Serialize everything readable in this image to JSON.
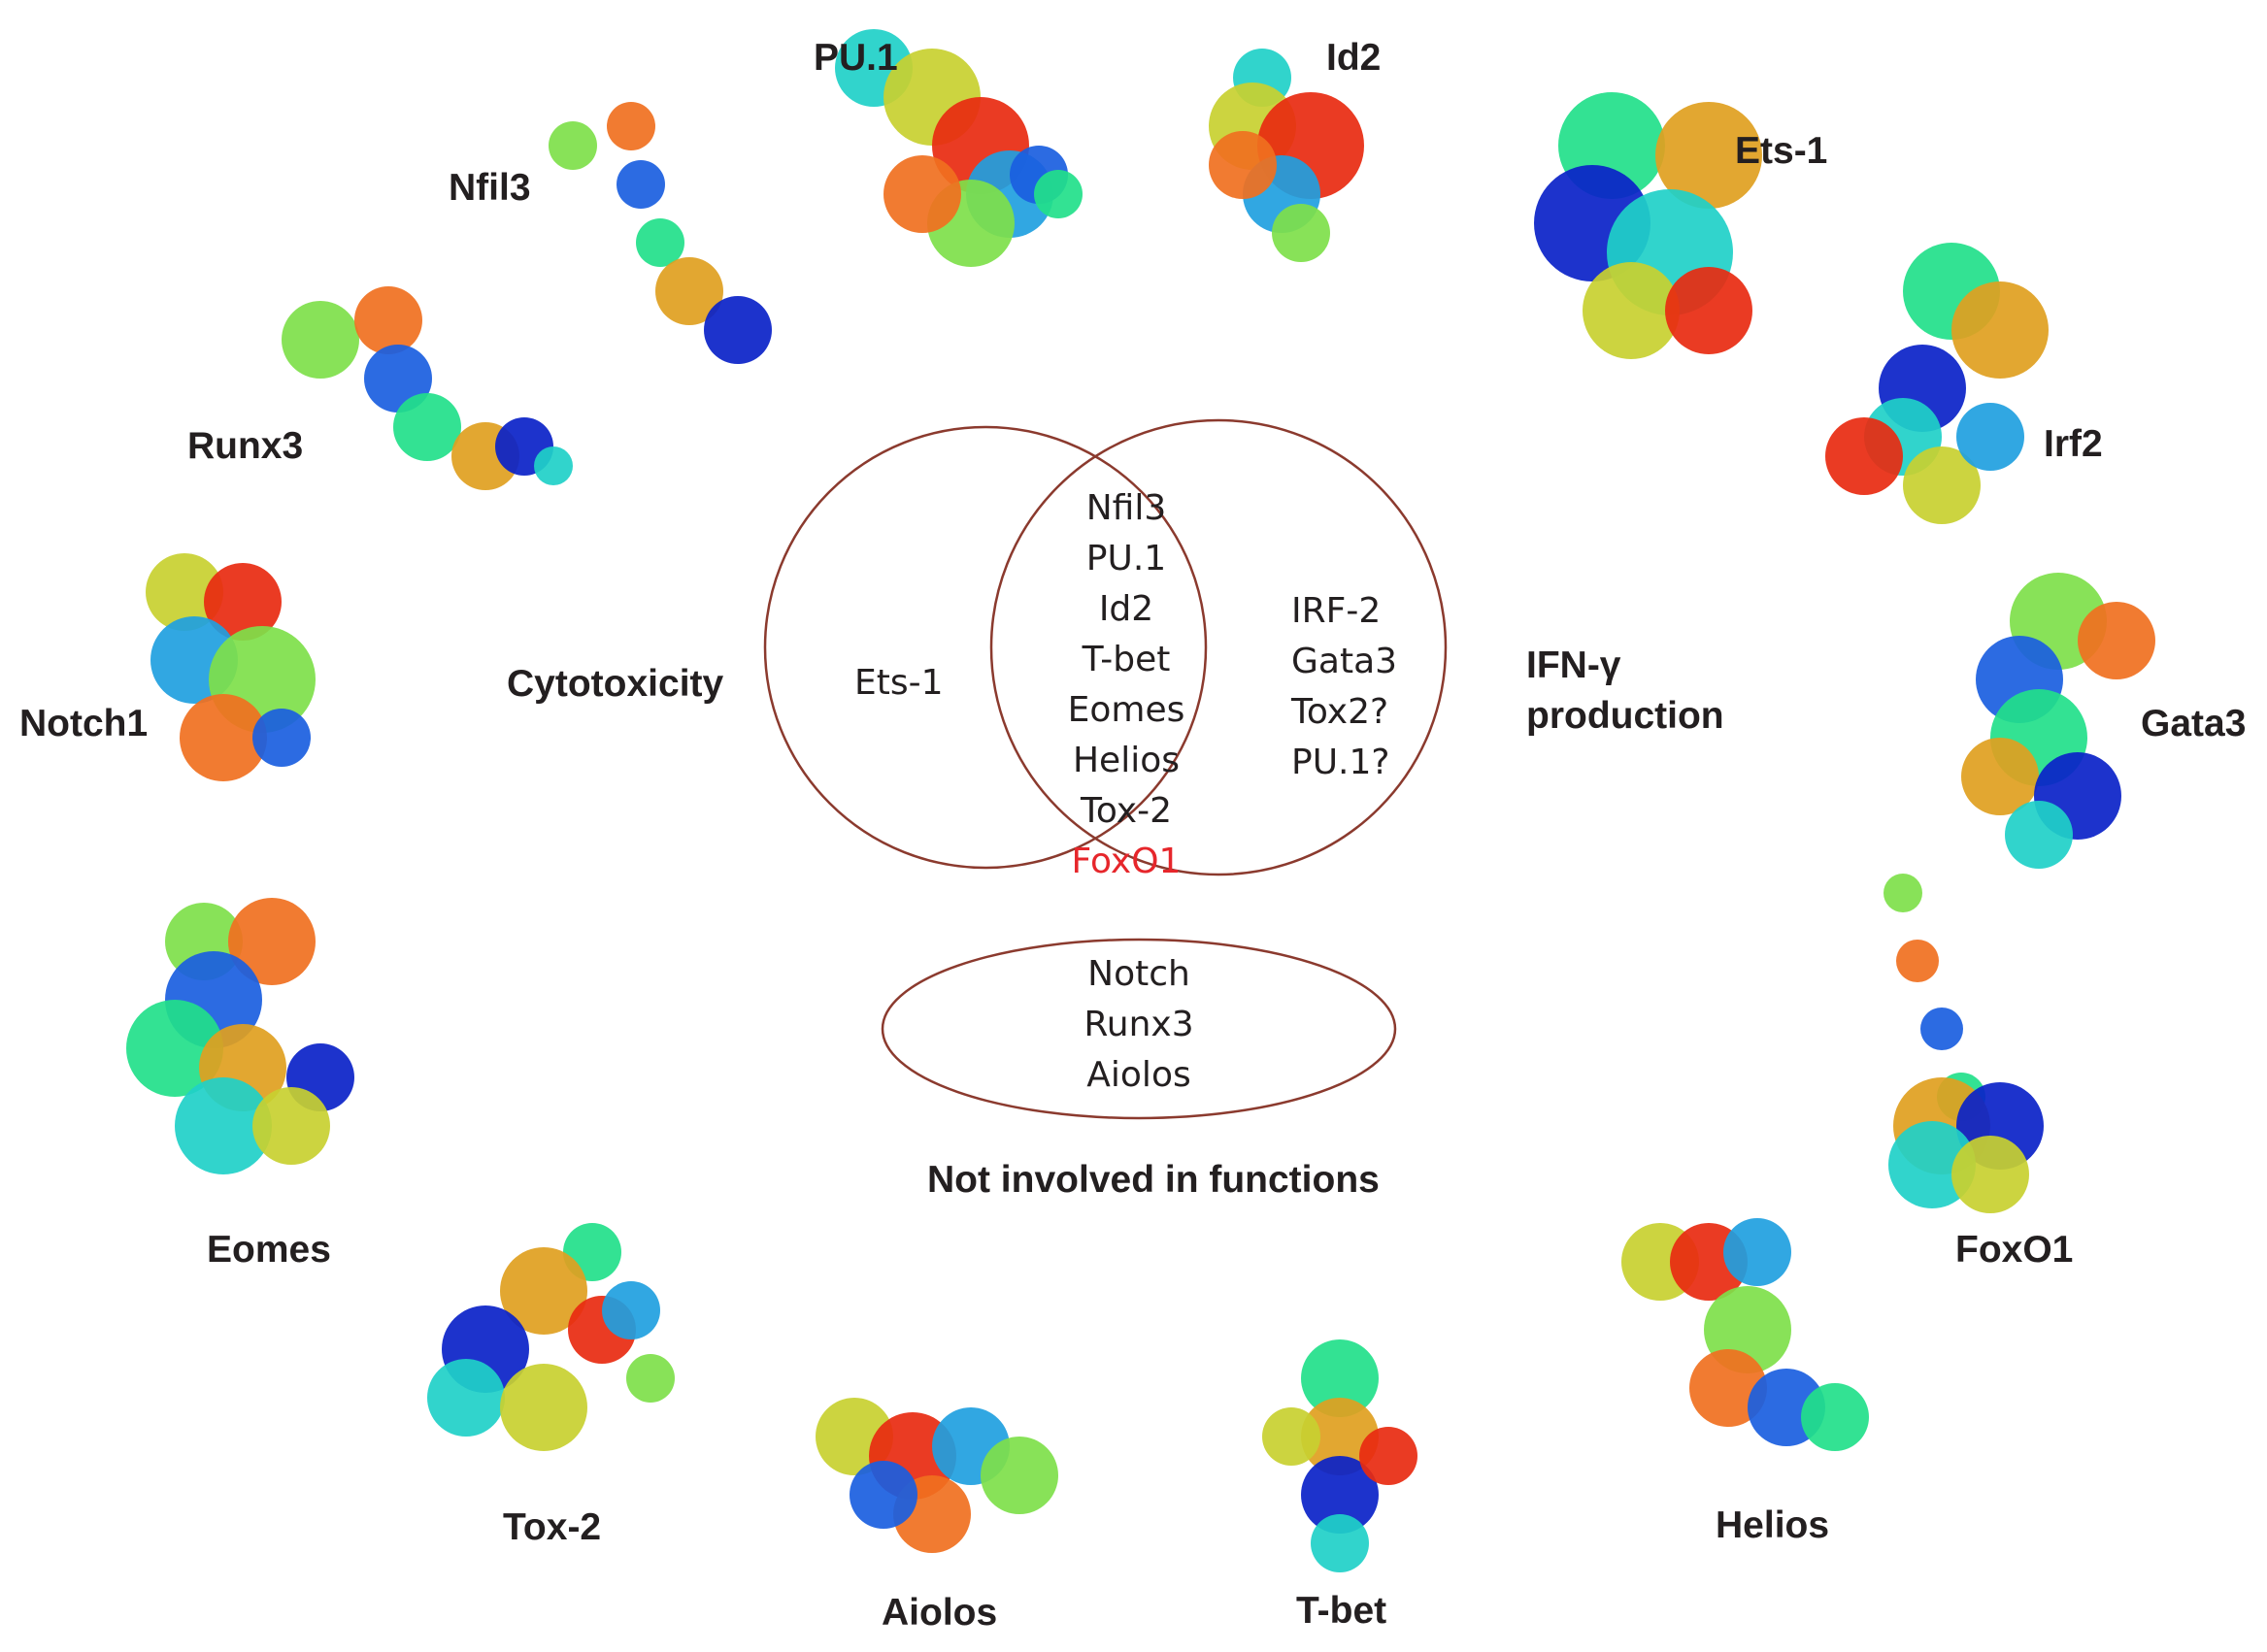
{
  "circles": {
    "left_label": "Cytotoxicity",
    "right_label_line1": "IFN-γ",
    "right_label_line2": "production",
    "bottom_label": "Not involved in functions"
  },
  "sets": {
    "cytotoxicity_only": [
      "Ets-1"
    ],
    "both": [
      "Nfil3",
      "PU.1",
      "Id2",
      "T-bet",
      "Eomes",
      "Helios",
      "Tox-2",
      "FoxO1"
    ],
    "ifn_only": [
      "IRF-2",
      "Gata3",
      "Tox2?",
      "PU.1?"
    ],
    "neither": [
      "Notch",
      "Runx3",
      "Aiolos"
    ]
  },
  "highlight": "FoxO1",
  "colors": {
    "circle_stroke": "#8b3a2e",
    "highlight": "#e6262b",
    "text": "#231f20"
  },
  "proteins": [
    {
      "name": "PU.1"
    },
    {
      "name": "Id2"
    },
    {
      "name": "Ets-1"
    },
    {
      "name": "Irf2"
    },
    {
      "name": "Gata3"
    },
    {
      "name": "FoxO1"
    },
    {
      "name": "Helios"
    },
    {
      "name": "T-bet"
    },
    {
      "name": "Aiolos"
    },
    {
      "name": "Tox-2"
    },
    {
      "name": "Eomes"
    },
    {
      "name": "Notch1"
    },
    {
      "name": "Runx3"
    },
    {
      "name": "Nfil3"
    }
  ]
}
